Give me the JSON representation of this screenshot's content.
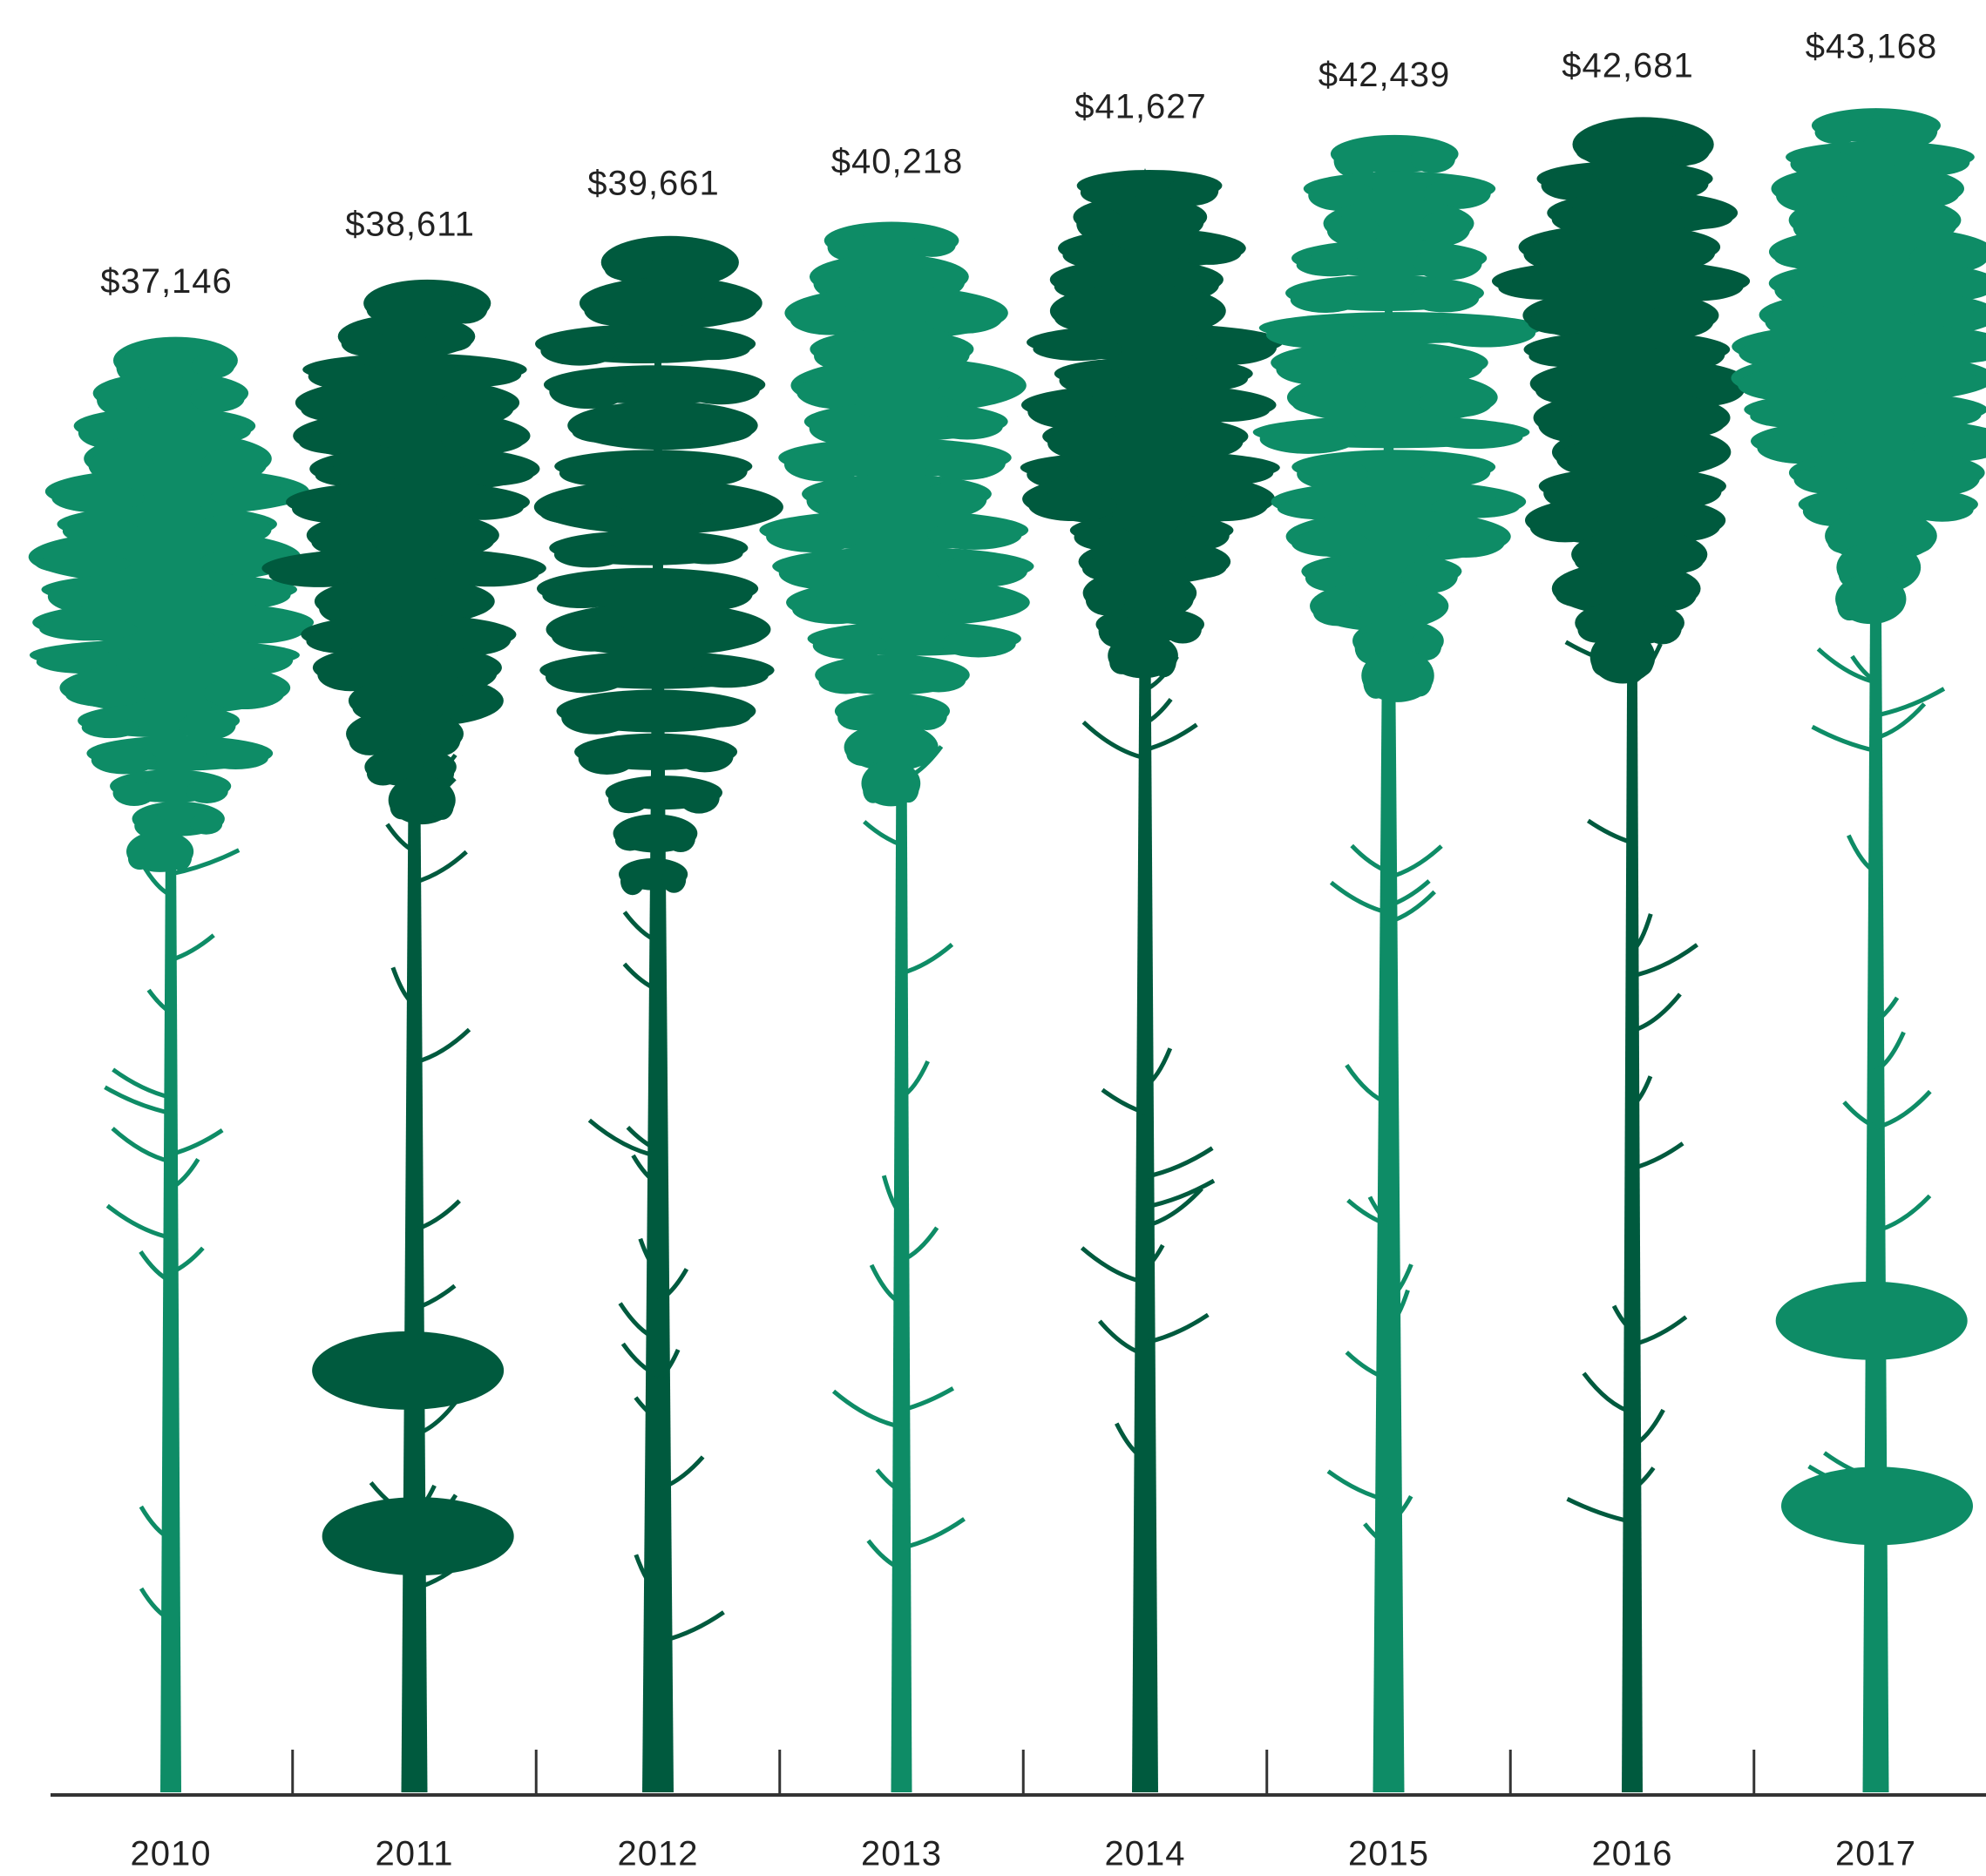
{
  "chart_data": {
    "type": "bar",
    "categories": [
      "2010",
      "2011",
      "2012",
      "2013",
      "2014",
      "2015",
      "2016",
      "2017"
    ],
    "values": [
      37146,
      38611,
      39661,
      40218,
      41627,
      42439,
      42681,
      43168
    ],
    "value_labels": [
      "$37,146",
      "$38,611",
      "$39,661",
      "$40,218",
      "$41,627",
      "$42,439",
      "$42,681",
      "$43,168"
    ],
    "colors": [
      "#0e8c66",
      "#005a3e",
      "#005a3e",
      "#0e8c66",
      "#005a3e",
      "#0e8c66",
      "#005a3e",
      "#0e8c66"
    ]
  }
}
